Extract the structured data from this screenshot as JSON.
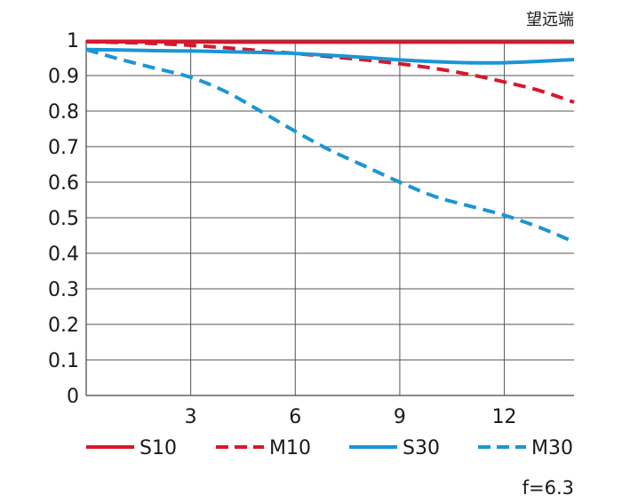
{
  "chart_data": {
    "type": "line",
    "title": "望远端",
    "annotation": "f=6.3",
    "xlim": [
      0,
      14
    ],
    "ylim": [
      0,
      1
    ],
    "x_ticks": [
      3,
      6,
      9,
      12
    ],
    "y_ticks": [
      0,
      0.1,
      0.2,
      0.3,
      0.4,
      0.5,
      0.6,
      0.7,
      0.8,
      0.9,
      1
    ],
    "y_tick_labels": [
      "0",
      "0.1",
      "0.2",
      "0.3",
      "0.4",
      "0.5",
      "0.6",
      "0.7",
      "0.8",
      "0.9",
      "1"
    ],
    "grid": true,
    "legend_position": "bottom",
    "series": [
      {
        "name": "S10",
        "color": "#d7182a",
        "dash": "solid",
        "x": [
          0,
          2,
          4,
          6,
          8,
          10,
          12,
          14
        ],
        "y": [
          0.995,
          0.995,
          0.994,
          0.994,
          0.994,
          0.994,
          0.994,
          0.994
        ]
      },
      {
        "name": "M10",
        "color": "#d7182a",
        "dash": "dashed",
        "x": [
          0,
          1,
          2,
          3,
          4,
          5,
          6,
          7,
          8,
          9,
          10,
          11,
          12,
          13,
          14
        ],
        "y": [
          0.995,
          0.993,
          0.99,
          0.985,
          0.978,
          0.97,
          0.962,
          0.953,
          0.944,
          0.933,
          0.92,
          0.903,
          0.882,
          0.858,
          0.825
        ]
      },
      {
        "name": "S30",
        "color": "#1a96d4",
        "dash": "solid",
        "x": [
          0,
          1,
          2,
          3,
          4,
          5,
          6,
          7,
          8,
          9,
          10,
          11,
          12,
          13,
          14
        ],
        "y": [
          0.973,
          0.972,
          0.97,
          0.969,
          0.967,
          0.965,
          0.962,
          0.957,
          0.951,
          0.944,
          0.939,
          0.936,
          0.936,
          0.94,
          0.945
        ]
      },
      {
        "name": "M30",
        "color": "#1a96d4",
        "dash": "dashed",
        "x": [
          0,
          1,
          2,
          3,
          4,
          5,
          6,
          7,
          8,
          9,
          10,
          11,
          12,
          13,
          14
        ],
        "y": [
          0.973,
          0.945,
          0.92,
          0.895,
          0.855,
          0.8,
          0.743,
          0.69,
          0.645,
          0.6,
          0.56,
          0.533,
          0.507,
          0.473,
          0.432
        ]
      }
    ]
  }
}
